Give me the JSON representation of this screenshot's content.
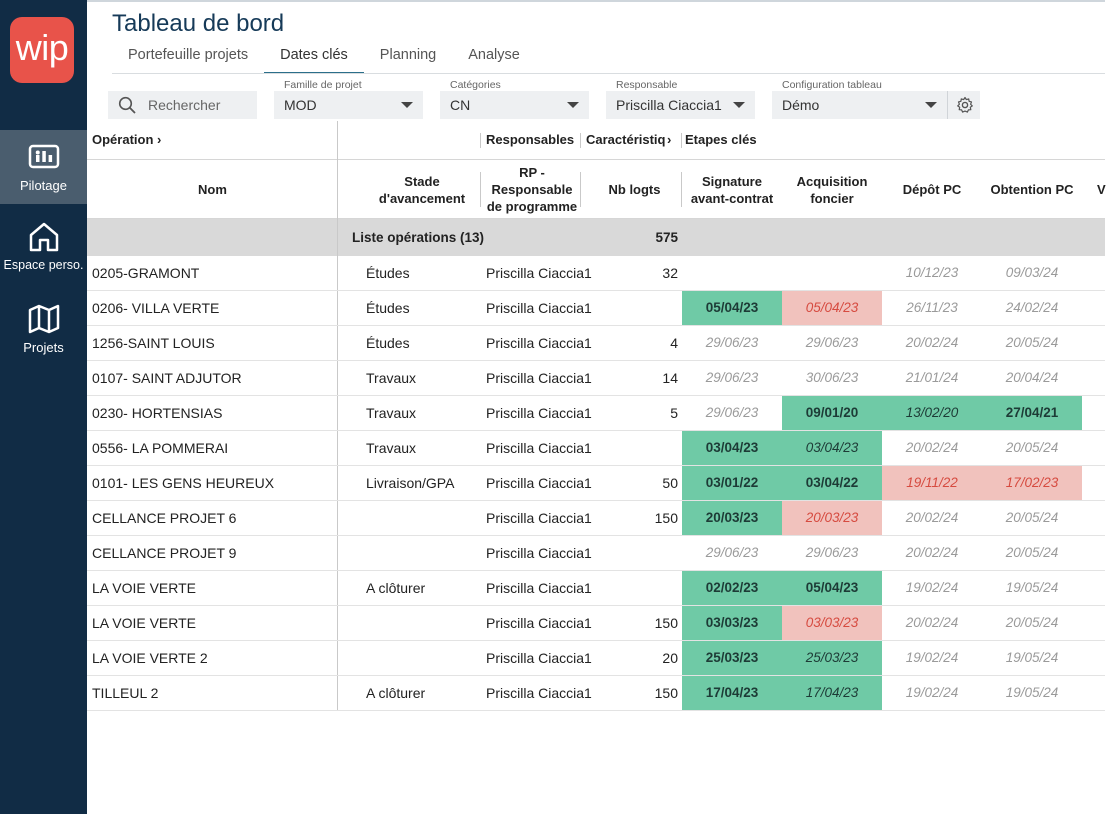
{
  "app": {
    "logo_text": "wip",
    "brand_color": "#e8534a",
    "sidebar_color": "#112c45"
  },
  "sidebar": {
    "items": [
      {
        "label": "Pilotage",
        "icon": "dashboard-icon",
        "active": true
      },
      {
        "label": "Espace perso.",
        "icon": "home-icon",
        "active": false
      },
      {
        "label": "Projets",
        "icon": "map-icon",
        "active": false
      }
    ]
  },
  "header": {
    "title": "Tableau de bord"
  },
  "tabs": [
    {
      "label": "Portefeuille projets",
      "active": false
    },
    {
      "label": "Dates clés",
      "active": true
    },
    {
      "label": "Planning",
      "active": false
    },
    {
      "label": "Analyse",
      "active": false
    }
  ],
  "filters": {
    "search_placeholder": "Rechercher",
    "famille": {
      "label": "Famille de projet",
      "value": "MOD"
    },
    "categories": {
      "label": "Catégories",
      "value": "CN"
    },
    "responsable": {
      "label": "Responsable",
      "value": "Priscilla Ciaccia1"
    },
    "configuration": {
      "label": "Configuration tableau",
      "value": "Démo"
    }
  },
  "groups": {
    "operation": "Opération",
    "responsables": "Responsables",
    "caracteristiques": "Caractéristiq",
    "etapes": "Etapes clés"
  },
  "columns": {
    "nom": "Nom",
    "stade": "Stade\nd'avancement",
    "rp": "RP -\nResponsable\nde programme",
    "nb": "Nb logts",
    "signature": "Signature\navant-contrat",
    "acquisition": "Acquisition\nfoncier",
    "depot": "Dépôt PC",
    "obtention": "Obtention PC",
    "extra": "V"
  },
  "summary": {
    "label": "Liste opérations (13)",
    "total": "575"
  },
  "rows": [
    {
      "nom": "0205-GRAMONT",
      "stade": "Études",
      "rp": "Priscilla Ciaccia1",
      "nb": "32",
      "sig": {
        "v": "",
        "s": ""
      },
      "acq": {
        "v": "",
        "s": ""
      },
      "dep": {
        "v": "10/12/23",
        "s": ""
      },
      "obt": {
        "v": "09/03/24",
        "s": ""
      }
    },
    {
      "nom": "0206- VILLA VERTE",
      "stade": "Études",
      "rp": "Priscilla Ciaccia1",
      "nb": "",
      "sig": {
        "v": "05/04/23",
        "s": "gb"
      },
      "acq": {
        "v": "05/04/23",
        "s": "r"
      },
      "dep": {
        "v": "26/11/23",
        "s": ""
      },
      "obt": {
        "v": "24/02/24",
        "s": ""
      }
    },
    {
      "nom": "1256-SAINT LOUIS",
      "stade": "Études",
      "rp": "Priscilla Ciaccia1",
      "nb": "4",
      "sig": {
        "v": "29/06/23",
        "s": ""
      },
      "acq": {
        "v": "29/06/23",
        "s": ""
      },
      "dep": {
        "v": "20/02/24",
        "s": ""
      },
      "obt": {
        "v": "20/05/24",
        "s": ""
      }
    },
    {
      "nom": "0107- SAINT ADJUTOR",
      "stade": "Travaux",
      "rp": "Priscilla Ciaccia1",
      "nb": "14",
      "sig": {
        "v": "29/06/23",
        "s": ""
      },
      "acq": {
        "v": "30/06/23",
        "s": ""
      },
      "dep": {
        "v": "21/01/24",
        "s": ""
      },
      "obt": {
        "v": "20/04/24",
        "s": ""
      }
    },
    {
      "nom": "0230- HORTENSIAS",
      "stade": "Travaux",
      "rp": "Priscilla Ciaccia1",
      "nb": "5",
      "sig": {
        "v": "29/06/23",
        "s": ""
      },
      "acq": {
        "v": "09/01/20",
        "s": "gb"
      },
      "dep": {
        "v": "13/02/20",
        "s": "g"
      },
      "obt": {
        "v": "27/04/21",
        "s": "gb"
      }
    },
    {
      "nom": "0556- LA POMMERAI",
      "stade": "Travaux",
      "rp": "Priscilla Ciaccia1",
      "nb": "",
      "sig": {
        "v": "03/04/23",
        "s": "gb"
      },
      "acq": {
        "v": "03/04/23",
        "s": "g"
      },
      "dep": {
        "v": "20/02/24",
        "s": ""
      },
      "obt": {
        "v": "20/05/24",
        "s": ""
      }
    },
    {
      "nom": "0101- LES GENS HEUREUX",
      "stade": "Livraison/GPA",
      "rp": "Priscilla Ciaccia1",
      "nb": "50",
      "sig": {
        "v": "03/01/22",
        "s": "gb"
      },
      "acq": {
        "v": "03/04/22",
        "s": "gb"
      },
      "dep": {
        "v": "19/11/22",
        "s": "r"
      },
      "obt": {
        "v": "17/02/23",
        "s": "r"
      }
    },
    {
      "nom": "CELLANCE PROJET 6",
      "stade": "",
      "rp": "Priscilla Ciaccia1",
      "nb": "150",
      "sig": {
        "v": "20/03/23",
        "s": "gb"
      },
      "acq": {
        "v": "20/03/23",
        "s": "r"
      },
      "dep": {
        "v": "20/02/24",
        "s": ""
      },
      "obt": {
        "v": "20/05/24",
        "s": ""
      }
    },
    {
      "nom": "CELLANCE PROJET 9",
      "stade": "",
      "rp": "Priscilla Ciaccia1",
      "nb": "",
      "sig": {
        "v": "29/06/23",
        "s": ""
      },
      "acq": {
        "v": "29/06/23",
        "s": ""
      },
      "dep": {
        "v": "20/02/24",
        "s": ""
      },
      "obt": {
        "v": "20/05/24",
        "s": ""
      }
    },
    {
      "nom": "LA VOIE VERTE",
      "stade": "A clôturer",
      "rp": "Priscilla Ciaccia1",
      "nb": "",
      "sig": {
        "v": "02/02/23",
        "s": "gb"
      },
      "acq": {
        "v": "05/04/23",
        "s": "gb"
      },
      "dep": {
        "v": "19/02/24",
        "s": ""
      },
      "obt": {
        "v": "19/05/24",
        "s": ""
      }
    },
    {
      "nom": "LA VOIE VERTE",
      "stade": "",
      "rp": "Priscilla Ciaccia1",
      "nb": "150",
      "sig": {
        "v": "03/03/23",
        "s": "gb"
      },
      "acq": {
        "v": "03/03/23",
        "s": "r"
      },
      "dep": {
        "v": "20/02/24",
        "s": ""
      },
      "obt": {
        "v": "20/05/24",
        "s": ""
      }
    },
    {
      "nom": "LA VOIE VERTE 2",
      "stade": "",
      "rp": "Priscilla Ciaccia1",
      "nb": "20",
      "sig": {
        "v": "25/03/23",
        "s": "gb"
      },
      "acq": {
        "v": "25/03/23",
        "s": "g"
      },
      "dep": {
        "v": "19/02/24",
        "s": ""
      },
      "obt": {
        "v": "19/05/24",
        "s": ""
      }
    },
    {
      "nom": "TILLEUL 2",
      "stade": "A clôturer",
      "rp": "Priscilla Ciaccia1",
      "nb": "150",
      "sig": {
        "v": "17/04/23",
        "s": "gb"
      },
      "acq": {
        "v": "17/04/23",
        "s": "g"
      },
      "dep": {
        "v": "19/02/24",
        "s": ""
      },
      "obt": {
        "v": "19/05/24",
        "s": ""
      }
    }
  ]
}
